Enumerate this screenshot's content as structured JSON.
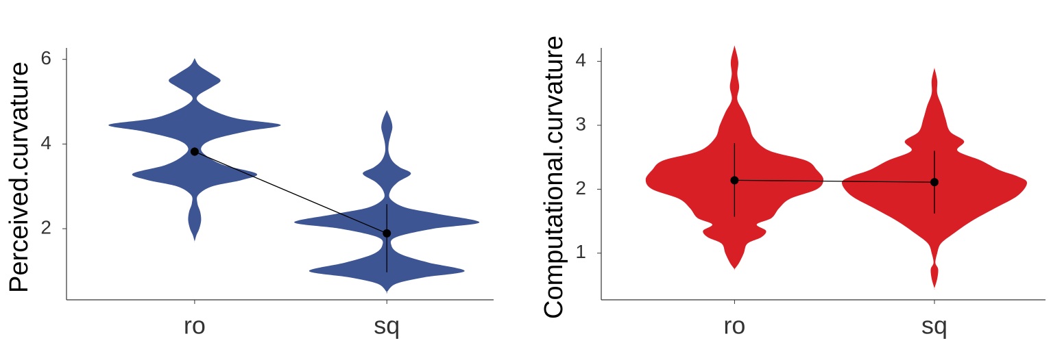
{
  "chart_data": [
    {
      "type": "violin",
      "y_label": "Perceived.curvature",
      "categories": [
        "ro",
        "sq"
      ],
      "color": "#3d5593",
      "ylim": [
        0.32,
        6.27
      ],
      "yticks": [
        2,
        4,
        6
      ],
      "violins": [
        {
          "y": [
            6.03,
            5.85,
            5.65,
            5.5,
            5.35,
            5.15,
            5.0,
            4.8,
            4.6,
            4.45,
            4.3,
            4.1,
            3.9,
            3.7,
            3.5,
            3.3,
            3.15,
            3.0,
            2.8,
            2.6,
            2.4,
            2.2,
            2.0,
            1.85,
            1.7
          ],
          "width": [
            0,
            0.05,
            0.19,
            0.28,
            0.19,
            0.04,
            0.04,
            0.19,
            0.46,
            0.93,
            0.56,
            0.19,
            0.07,
            0.14,
            0.32,
            0.67,
            0.51,
            0.19,
            0.04,
            0.03,
            0.06,
            0.07,
            0.05,
            0.02,
            0
          ]
        },
        {
          "y": [
            4.8,
            4.6,
            4.4,
            4.2,
            4.0,
            3.8,
            3.6,
            3.45,
            3.3,
            3.1,
            2.9,
            2.7,
            2.5,
            2.35,
            2.15,
            2.0,
            1.8,
            1.6,
            1.4,
            1.2,
            1.0,
            0.85,
            0.7,
            0.5
          ],
          "width": [
            0,
            0.04,
            0.06,
            0.04,
            0.02,
            0.02,
            0.06,
            0.14,
            0.26,
            0.12,
            0.04,
            0.04,
            0.2,
            0.55,
            1.0,
            0.5,
            0.1,
            0.05,
            0.15,
            0.45,
            0.84,
            0.4,
            0.1,
            0
          ]
        }
      ],
      "means": [
        3.82,
        1.89
      ],
      "lower": [
        3.72,
        0.97
      ],
      "upper": [
        3.92,
        2.58
      ]
    },
    {
      "type": "violin",
      "y_label": "Computational.curvature",
      "categories": [
        "ro",
        "sq"
      ],
      "color": "#d81f26",
      "ylim": [
        0.27,
        4.21
      ],
      "yticks": [
        1,
        2,
        3,
        4
      ],
      "violins": [
        {
          "y": [
            4.25,
            4.0,
            3.8,
            3.6,
            3.4,
            3.2,
            3.0,
            2.8,
            2.6,
            2.45,
            2.3,
            2.15,
            2.0,
            1.85,
            1.7,
            1.55,
            1.45,
            1.35,
            1.25,
            1.15,
            1.0,
            0.85,
            0.75
          ],
          "width": [
            0,
            0.04,
            0.03,
            0.05,
            0.03,
            0.1,
            0.16,
            0.21,
            0.38,
            0.77,
            0.89,
            0.96,
            0.89,
            0.6,
            0.48,
            0.4,
            0.24,
            0.34,
            0.29,
            0.14,
            0.1,
            0.05,
            0
          ]
        },
        {
          "y": [
            3.9,
            3.7,
            3.5,
            3.3,
            3.1,
            2.9,
            2.75,
            2.6,
            2.45,
            2.3,
            2.2,
            2.1,
            1.9,
            1.7,
            1.5,
            1.3,
            1.15,
            1.0,
            0.85,
            0.75,
            0.6,
            0.45
          ],
          "width": [
            0,
            0.03,
            0.03,
            0.08,
            0.12,
            0.17,
            0.32,
            0.25,
            0.5,
            0.7,
            0.9,
            1.0,
            0.9,
            0.65,
            0.4,
            0.2,
            0.07,
            0.03,
            0.01,
            0.04,
            0.03,
            0
          ]
        }
      ],
      "means": [
        2.14,
        2.11
      ],
      "lower": [
        1.57,
        1.62
      ],
      "upper": [
        2.72,
        2.6
      ]
    }
  ]
}
